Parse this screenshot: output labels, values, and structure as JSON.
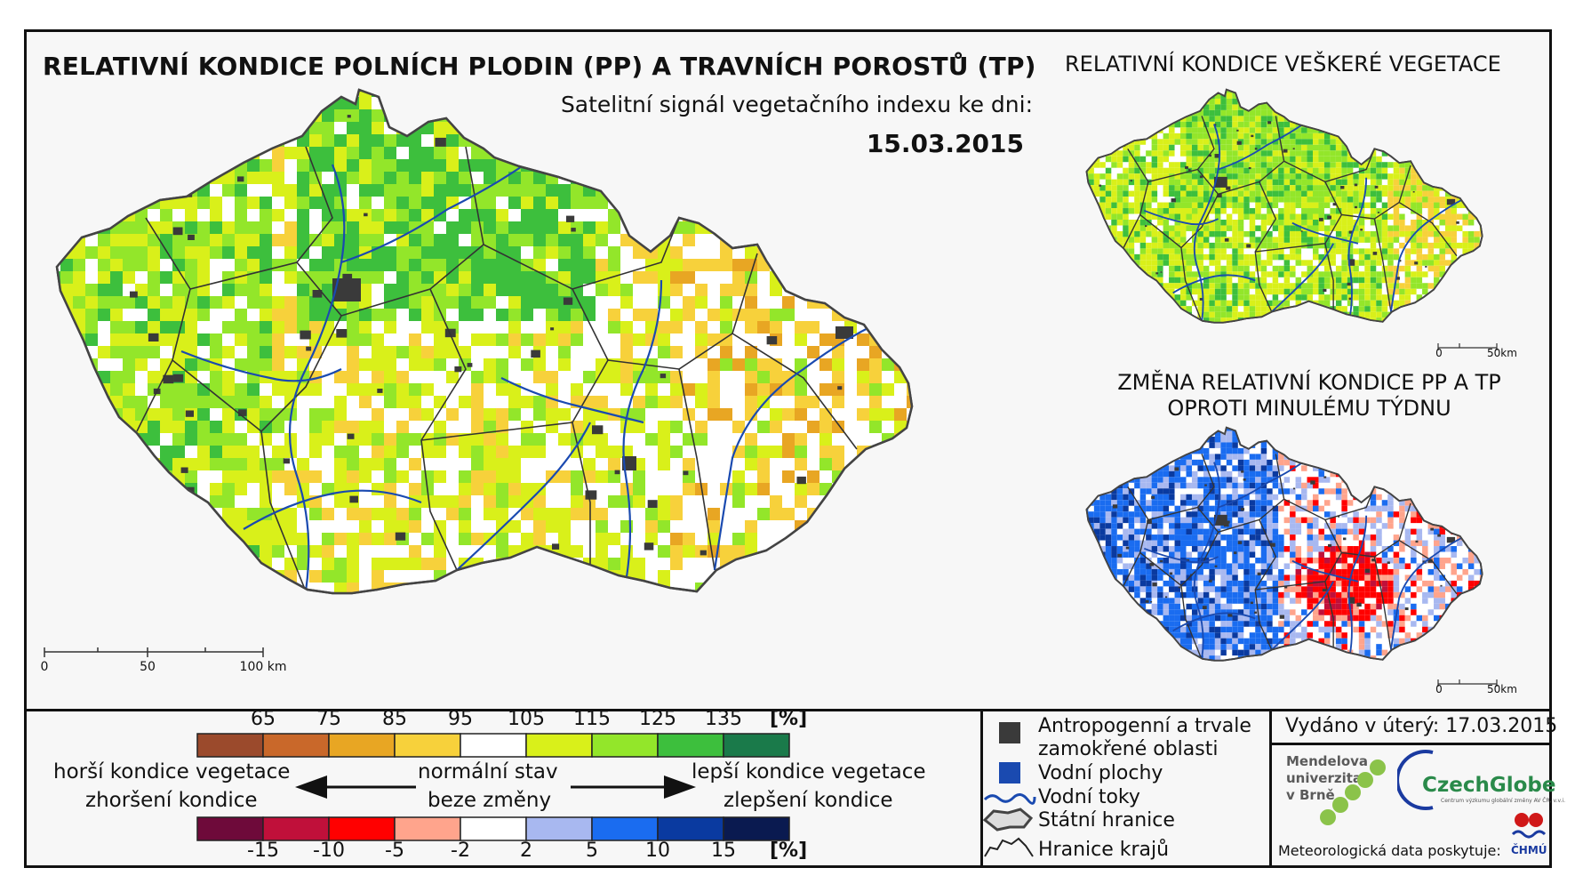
{
  "header": {
    "main_title": "RELATIVNÍ KONDICE POLNÍCH PLODIN (PP) A TRAVNÍCH POROSTŮ (TP)",
    "subtitle": "Satelitní signál vegetačního indexu ke dni:",
    "date": "15.03.2015",
    "veg_title": "RELATIVNÍ KONDICE VEŠKERÉ VEGETACE",
    "change_title": "ZMĚNA RELATIVNÍ KONDICE PP A TP OPROTI MINULÉMU TÝDNU"
  },
  "scalebar_main": {
    "labels": [
      "0",
      "50",
      "100 km"
    ]
  },
  "scalebar_small": {
    "labels": [
      "0",
      "50km"
    ]
  },
  "legend_top": {
    "ticks": [
      "65",
      "75",
      "85",
      "95",
      "105",
      "115",
      "125",
      "135"
    ],
    "unit": "[%]",
    "colors": [
      "#9b4a2c",
      "#c9682a",
      "#e8a623",
      "#f7d13b",
      "#ffffff",
      "#d9f01a",
      "#93e62a",
      "#3dbf3d",
      "#1a7a4a"
    ]
  },
  "legend_bottom": {
    "ticks": [
      "-15",
      "-10",
      "-5",
      "-2",
      "2",
      "5",
      "10",
      "15"
    ],
    "unit": "[%]",
    "colors": [
      "#6e0a3a",
      "#c0103a",
      "#ff0000",
      "#ffa48c",
      "#ffffff",
      "#a8b8f0",
      "#1a6cf0",
      "#0a3aa0",
      "#0a1a50"
    ]
  },
  "legend_labels": {
    "worse_1": "horší kondice vegetace",
    "worse_2": "zhoršení kondice",
    "normal_1": "normální stav",
    "normal_2": "beze změny",
    "better_1": "lepší kondice vegetace",
    "better_2": "zlepšení kondice"
  },
  "symbols": {
    "antropogenic_1": "Antropogenní a trvale",
    "antropogenic_2": "zamokřené oblasti",
    "water_areas": "Vodní plochy",
    "rivers": "Vodní toky",
    "state_border": "Státní hranice",
    "region_border": "Hranice krajů"
  },
  "footer": {
    "issued": "Vydáno v úterý: 17.03.2015",
    "mendel_1": "Mendelova",
    "mendel_2": "univerzita",
    "mendel_3": "v Brně",
    "czechglobe": "CzechGlobe",
    "czechglobe_sub": "Centrum výzkumu globální změny AV ČR, v.v.i.",
    "meteo": "Meteorologická data poskytuje:",
    "chmu": "ČHMÚ"
  },
  "colors": {
    "antropogenic": "#3a3a3a",
    "water": "#1a4ab0",
    "river": "#1a4ab0"
  }
}
